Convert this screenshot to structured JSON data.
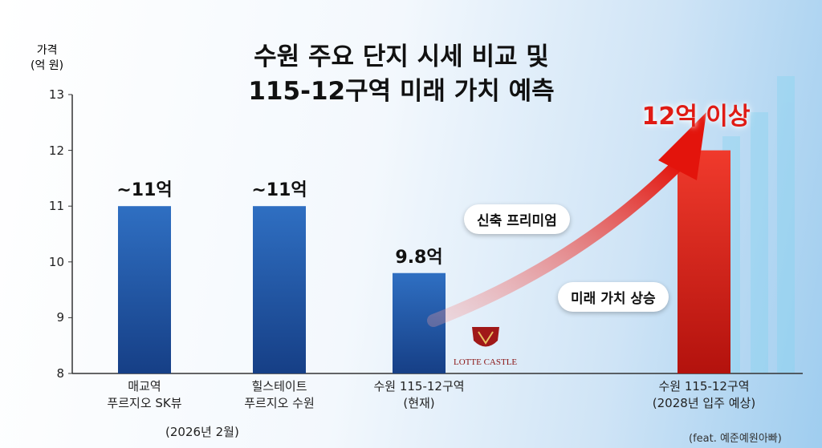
{
  "title": "수원 주요 단지 시세 비교 및\n115-12구역 미래 가치 예측",
  "chart_data": {
    "type": "bar",
    "y_label": "가격\n(억 원)",
    "categories": [
      "매교역\n푸르지오 SK뷰",
      "힐스테이트\n푸르지오 수원",
      "수원 115-12구역\n(현재)",
      "수원 115-12구역\n(2028년 입주 예상)"
    ],
    "values": [
      11,
      11,
      9.8,
      12
    ],
    "value_labels": [
      "~11억",
      "~11억",
      "9.8억",
      "12억 이상"
    ],
    "colors": [
      "#2460b0",
      "#2460b0",
      "#2460b0",
      "#e3241c"
    ],
    "ylim": [
      8,
      13
    ],
    "yticks": [
      8,
      9,
      10,
      11,
      12,
      13
    ],
    "grid": false
  },
  "annotations": {
    "date_note": "(2026년 2월)",
    "premium": "신축 프리미엄",
    "rise": "미래 가치 상승",
    "brand": "LOTTE CASTLE",
    "credit": "(feat. 예준예원아빠)"
  }
}
